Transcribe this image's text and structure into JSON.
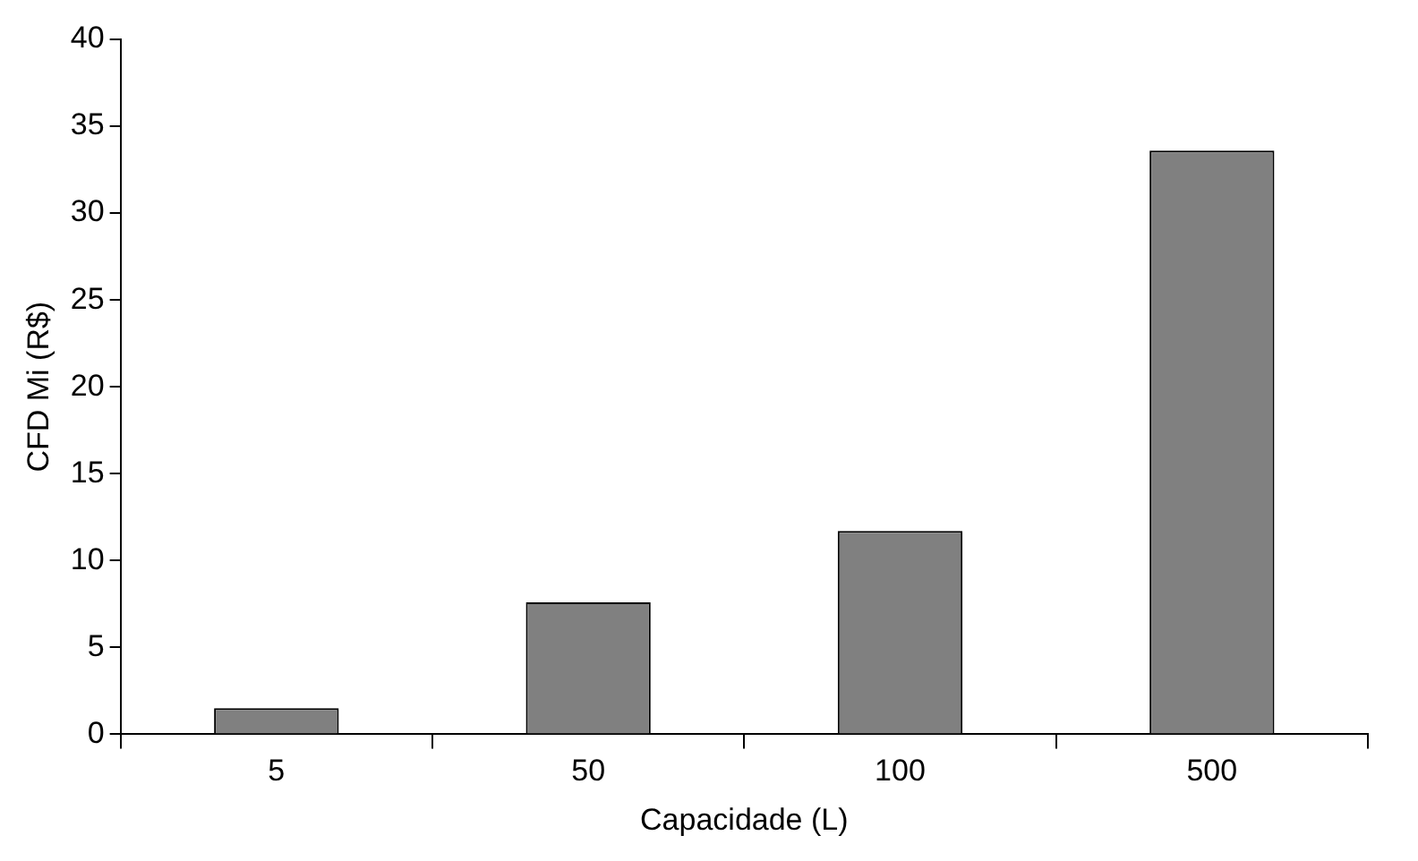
{
  "chart_data": {
    "type": "bar",
    "xlabel": "Capacidade (L)",
    "ylabel": "CFD Mi (R$)",
    "categories": [
      "5",
      "50",
      "100",
      "500"
    ],
    "values": [
      1.5,
      7.6,
      11.7,
      33.6
    ],
    "color": "#808080",
    "ylim": [
      0,
      40
    ],
    "yticks": [
      0,
      5,
      10,
      15,
      20,
      25,
      30,
      35,
      40
    ],
    "grid": false,
    "legend": false
  }
}
